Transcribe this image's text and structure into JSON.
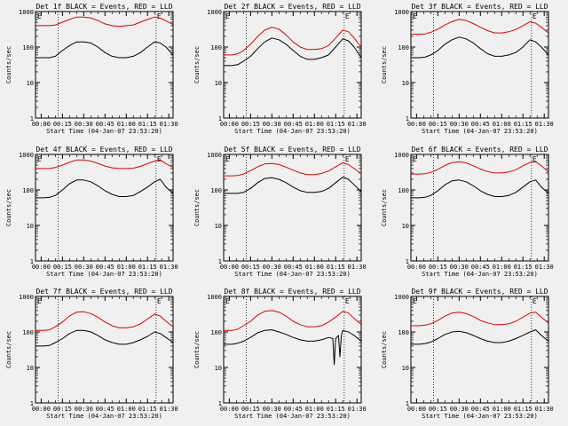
{
  "page": {
    "background": "#f0f0f0",
    "series_colors": {
      "events": "#000000",
      "lld": "#e00000"
    }
  },
  "common": {
    "ylabel": "Counts/sec",
    "xlabel": "Start Time (04-Jan-07 23:53:20)",
    "x_ticks": [
      "00:00",
      "00:15",
      "00:30",
      "00:45",
      "01:00",
      "01:15",
      "01:30"
    ],
    "y_ticks": [
      "1",
      "10",
      "100",
      "1000"
    ],
    "marker_label": "E"
  },
  "chart_data": [
    {
      "type": "line",
      "title": "Det 1f BLACK = Events, RED = LLD",
      "x_unit": "minutes",
      "x_range": [
        -4,
        93
      ],
      "ylim": [
        1,
        1000
      ],
      "y_scale": "log",
      "vlines": [
        12,
        81
      ],
      "series": [
        {
          "name": "Events",
          "color": "#000000",
          "x": [
            -4,
            2,
            6,
            10,
            15,
            20,
            25,
            30,
            35,
            40,
            45,
            50,
            55,
            60,
            65,
            70,
            75,
            80,
            84,
            88,
            93
          ],
          "values": [
            50,
            50,
            50,
            55,
            80,
            110,
            140,
            140,
            130,
            100,
            70,
            55,
            50,
            50,
            55,
            70,
            100,
            140,
            130,
            100,
            60
          ]
        },
        {
          "name": "LLD",
          "color": "#e00000",
          "x": [
            -4,
            2,
            6,
            10,
            15,
            20,
            25,
            30,
            35,
            40,
            45,
            50,
            55,
            60,
            65,
            70,
            75,
            80,
            84,
            88,
            93
          ],
          "values": [
            400,
            400,
            400,
            420,
            500,
            600,
            700,
            700,
            660,
            560,
            450,
            400,
            380,
            400,
            420,
            500,
            600,
            700,
            650,
            550,
            430
          ]
        }
      ]
    },
    {
      "type": "line",
      "title": "Det 2f BLACK = Events, RED = LLD",
      "x_unit": "minutes",
      "x_range": [
        -4,
        93
      ],
      "ylim": [
        1,
        1000
      ],
      "y_scale": "log",
      "vlines": [
        12,
        81
      ],
      "series": [
        {
          "name": "Events",
          "color": "#000000",
          "x": [
            -4,
            2,
            6,
            10,
            15,
            20,
            25,
            30,
            35,
            40,
            45,
            50,
            55,
            60,
            65,
            70,
            75,
            80,
            84,
            88,
            93
          ],
          "values": [
            30,
            30,
            32,
            40,
            55,
            90,
            140,
            180,
            160,
            120,
            80,
            55,
            45,
            45,
            50,
            60,
            100,
            170,
            150,
            100,
            50
          ]
        },
        {
          "name": "LLD",
          "color": "#e00000",
          "x": [
            -4,
            2,
            6,
            10,
            15,
            20,
            25,
            30,
            35,
            40,
            45,
            50,
            55,
            60,
            65,
            70,
            75,
            80,
            84,
            88,
            93
          ],
          "values": [
            60,
            60,
            65,
            80,
            120,
            200,
            300,
            360,
            320,
            220,
            140,
            100,
            85,
            85,
            90,
            110,
            180,
            300,
            270,
            180,
            100
          ]
        }
      ]
    },
    {
      "type": "line",
      "title": "Det 3f BLACK = Events, RED = LLD",
      "x_unit": "minutes",
      "x_range": [
        -4,
        93
      ],
      "ylim": [
        1,
        1000
      ],
      "y_scale": "log",
      "vlines": [
        12,
        81
      ],
      "series": [
        {
          "name": "Events",
          "color": "#000000",
          "x": [
            -4,
            2,
            6,
            10,
            15,
            20,
            25,
            30,
            35,
            40,
            45,
            50,
            55,
            60,
            65,
            70,
            75,
            80,
            84,
            88,
            93
          ],
          "values": [
            50,
            50,
            52,
            60,
            80,
            120,
            160,
            190,
            170,
            130,
            90,
            65,
            55,
            55,
            60,
            70,
            100,
            160,
            140,
            100,
            60
          ]
        },
        {
          "name": "LLD",
          "color": "#e00000",
          "x": [
            -4,
            2,
            6,
            10,
            15,
            20,
            25,
            30,
            35,
            40,
            45,
            50,
            55,
            60,
            65,
            70,
            75,
            80,
            84,
            88,
            93
          ],
          "values": [
            230,
            230,
            235,
            260,
            320,
            420,
            520,
            600,
            560,
            460,
            360,
            290,
            250,
            250,
            270,
            310,
            400,
            520,
            470,
            360,
            250
          ]
        }
      ]
    },
    {
      "type": "line",
      "title": "Det 4f BLACK = Events, RED = LLD",
      "x_unit": "minutes",
      "x_range": [
        -4,
        93
      ],
      "ylim": [
        1,
        1000
      ],
      "y_scale": "log",
      "vlines": [
        12,
        81
      ],
      "series": [
        {
          "name": "Events",
          "color": "#000000",
          "x": [
            -4,
            2,
            6,
            10,
            15,
            20,
            25,
            30,
            35,
            40,
            45,
            50,
            55,
            60,
            65,
            70,
            75,
            80,
            84,
            88,
            93
          ],
          "values": [
            60,
            60,
            62,
            70,
            100,
            150,
            190,
            190,
            170,
            130,
            95,
            75,
            65,
            65,
            70,
            90,
            120,
            170,
            200,
            120,
            80
          ]
        },
        {
          "name": "LLD",
          "color": "#e00000",
          "x": [
            -4,
            2,
            6,
            10,
            15,
            20,
            25,
            30,
            35,
            40,
            45,
            50,
            55,
            60,
            65,
            70,
            75,
            80,
            84,
            88,
            93
          ],
          "values": [
            400,
            400,
            405,
            430,
            500,
            600,
            700,
            700,
            650,
            560,
            470,
            420,
            400,
            400,
            410,
            460,
            550,
            650,
            700,
            550,
            430
          ]
        }
      ]
    },
    {
      "type": "line",
      "title": "Det 5f BLACK = Events, RED = LLD",
      "x_unit": "minutes",
      "x_range": [
        -4,
        93
      ],
      "ylim": [
        1,
        1000
      ],
      "y_scale": "log",
      "vlines": [
        12,
        81
      ],
      "series": [
        {
          "name": "Events",
          "color": "#000000",
          "x": [
            -4,
            2,
            6,
            10,
            15,
            20,
            25,
            30,
            35,
            40,
            45,
            50,
            55,
            60,
            65,
            70,
            75,
            80,
            84,
            88,
            93
          ],
          "values": [
            80,
            80,
            80,
            85,
            110,
            160,
            210,
            220,
            200,
            160,
            120,
            95,
            85,
            85,
            90,
            110,
            160,
            230,
            200,
            140,
            90
          ]
        },
        {
          "name": "LLD",
          "color": "#e00000",
          "x": [
            -4,
            2,
            6,
            10,
            15,
            20,
            25,
            30,
            35,
            40,
            45,
            50,
            55,
            60,
            65,
            70,
            75,
            80,
            84,
            88,
            93
          ],
          "values": [
            250,
            250,
            255,
            280,
            350,
            450,
            540,
            560,
            520,
            440,
            360,
            300,
            270,
            270,
            290,
            340,
            450,
            580,
            520,
            400,
            290
          ]
        }
      ]
    },
    {
      "type": "line",
      "title": "Det 6f BLACK = Events, RED = LLD",
      "x_unit": "minutes",
      "x_range": [
        -4,
        93
      ],
      "ylim": [
        1,
        1000
      ],
      "y_scale": "log",
      "vlines": [
        12,
        81
      ],
      "series": [
        {
          "name": "Events",
          "color": "#000000",
          "x": [
            -4,
            2,
            6,
            10,
            15,
            20,
            25,
            30,
            35,
            40,
            45,
            50,
            55,
            60,
            65,
            70,
            75,
            80,
            84,
            88,
            93
          ],
          "values": [
            60,
            60,
            62,
            70,
            95,
            140,
            180,
            190,
            170,
            130,
            95,
            75,
            65,
            65,
            70,
            85,
            120,
            170,
            190,
            120,
            80
          ]
        },
        {
          "name": "LLD",
          "color": "#e00000",
          "x": [
            -4,
            2,
            6,
            10,
            15,
            20,
            25,
            30,
            35,
            40,
            45,
            50,
            55,
            60,
            65,
            70,
            75,
            80,
            84,
            88,
            93
          ],
          "values": [
            280,
            280,
            285,
            310,
            380,
            490,
            590,
            620,
            580,
            480,
            390,
            330,
            300,
            300,
            320,
            370,
            480,
            600,
            620,
            480,
            320
          ]
        }
      ]
    },
    {
      "type": "line",
      "title": "Det 7f BLACK = Events, RED = LLD",
      "x_unit": "minutes",
      "x_range": [
        -4,
        93
      ],
      "ylim": [
        1,
        1000
      ],
      "y_scale": "log",
      "vlines": [
        12,
        81
      ],
      "series": [
        {
          "name": "Events",
          "color": "#000000",
          "x": [
            -4,
            2,
            6,
            10,
            15,
            20,
            25,
            30,
            35,
            40,
            45,
            50,
            55,
            60,
            65,
            70,
            75,
            80,
            84,
            88,
            93
          ],
          "values": [
            40,
            40,
            42,
            50,
            65,
            90,
            110,
            110,
            100,
            80,
            60,
            50,
            45,
            45,
            50,
            60,
            75,
            100,
            90,
            70,
            50
          ]
        },
        {
          "name": "LLD",
          "color": "#e00000",
          "x": [
            -4,
            2,
            6,
            10,
            15,
            20,
            25,
            30,
            35,
            40,
            45,
            50,
            55,
            60,
            65,
            70,
            75,
            80,
            84,
            88,
            93
          ],
          "values": [
            110,
            110,
            115,
            140,
            190,
            280,
            360,
            370,
            330,
            260,
            190,
            150,
            130,
            130,
            140,
            170,
            230,
            320,
            280,
            200,
            140
          ]
        }
      ]
    },
    {
      "type": "line",
      "title": "Det 8f BLACK = Events, RED = LLD",
      "x_unit": "minutes",
      "x_range": [
        -4,
        93
      ],
      "ylim": [
        1,
        1000
      ],
      "y_scale": "log",
      "vlines": [
        12,
        81
      ],
      "series": [
        {
          "name": "Events",
          "color": "#000000",
          "x": [
            -4,
            2,
            6,
            10,
            15,
            20,
            25,
            30,
            35,
            40,
            45,
            50,
            55,
            60,
            65,
            70,
            73,
            74,
            75,
            77,
            78,
            79,
            80,
            84,
            88,
            93
          ],
          "values": [
            45,
            45,
            48,
            55,
            70,
            95,
            110,
            115,
            100,
            85,
            70,
            60,
            55,
            55,
            60,
            70,
            65,
            12,
            65,
            80,
            20,
            80,
            110,
            100,
            80,
            55
          ]
        },
        {
          "name": "LLD",
          "color": "#e00000",
          "x": [
            -4,
            2,
            6,
            10,
            15,
            20,
            25,
            30,
            35,
            40,
            45,
            50,
            55,
            60,
            65,
            70,
            75,
            80,
            84,
            88,
            93
          ],
          "values": [
            110,
            110,
            120,
            150,
            200,
            300,
            380,
            400,
            360,
            280,
            200,
            160,
            140,
            140,
            150,
            190,
            260,
            380,
            340,
            240,
            160
          ]
        }
      ]
    },
    {
      "type": "line",
      "title": "Det 9f BLACK = Events, RED = LLD",
      "x_unit": "minutes",
      "x_range": [
        -4,
        93
      ],
      "ylim": [
        1,
        1000
      ],
      "y_scale": "log",
      "vlines": [
        12,
        81
      ],
      "series": [
        {
          "name": "Events",
          "color": "#000000",
          "x": [
            -4,
            2,
            6,
            10,
            15,
            20,
            25,
            30,
            35,
            40,
            45,
            50,
            55,
            60,
            65,
            70,
            75,
            80,
            84,
            88,
            93
          ],
          "values": [
            45,
            45,
            47,
            52,
            65,
            85,
            100,
            105,
            95,
            80,
            65,
            55,
            50,
            50,
            55,
            65,
            80,
            100,
            115,
            80,
            55
          ]
        },
        {
          "name": "LLD",
          "color": "#e00000",
          "x": [
            -4,
            2,
            6,
            10,
            15,
            20,
            25,
            30,
            35,
            40,
            45,
            50,
            55,
            60,
            65,
            70,
            75,
            80,
            84,
            88,
            93
          ],
          "values": [
            150,
            150,
            155,
            170,
            210,
            280,
            340,
            360,
            330,
            270,
            210,
            180,
            160,
            160,
            170,
            200,
            260,
            340,
            360,
            260,
            180
          ]
        }
      ]
    }
  ]
}
